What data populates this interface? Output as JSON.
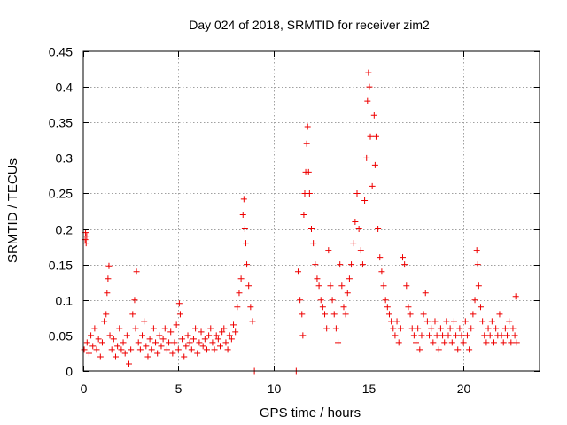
{
  "chart_data": {
    "type": "scatter",
    "title": "Day 024 of 2018, SRMTID for receiver zim2",
    "xlabel": "GPS time / hours",
    "ylabel": "SRMTID / TECUs",
    "xlim": [
      0,
      24
    ],
    "ylim": [
      0,
      0.45
    ],
    "xticks": [
      0,
      5,
      10,
      15,
      20
    ],
    "xtick_labels": [
      "0",
      "5",
      "10",
      "15",
      "20"
    ],
    "yticks": [
      0,
      0.05,
      0.1,
      0.15,
      0.2,
      0.25,
      0.3,
      0.35,
      0.4,
      0.45
    ],
    "ytick_labels": [
      "0",
      "0.05",
      "0.1",
      "0.15",
      "0.2",
      "0.25",
      "0.3",
      "0.35",
      "0.4",
      "0.45"
    ],
    "grid": true,
    "marker": "+",
    "color": "#ee0000",
    "series": [
      {
        "name": "zim2",
        "points": [
          [
            0.05,
            0.03
          ],
          [
            0.1,
            0.185
          ],
          [
            0.12,
            0.195
          ],
          [
            0.15,
            0.18
          ],
          [
            0.18,
            0.19
          ],
          [
            0.2,
            0.04
          ],
          [
            0.3,
            0.025
          ],
          [
            0.4,
            0.05
          ],
          [
            0.5,
            0.035
          ],
          [
            0.6,
            0.06
          ],
          [
            0.7,
            0.03
          ],
          [
            0.8,
            0.045
          ],
          [
            0.9,
            0.02
          ],
          [
            1.0,
            0.04
          ],
          [
            1.1,
            0.07
          ],
          [
            1.2,
            0.08
          ],
          [
            1.25,
            0.11
          ],
          [
            1.3,
            0.13
          ],
          [
            1.35,
            0.148
          ],
          [
            1.4,
            0.05
          ],
          [
            1.5,
            0.03
          ],
          [
            1.6,
            0.045
          ],
          [
            1.7,
            0.02
          ],
          [
            1.8,
            0.035
          ],
          [
            1.9,
            0.06
          ],
          [
            2.0,
            0.03
          ],
          [
            2.1,
            0.04
          ],
          [
            2.2,
            0.025
          ],
          [
            2.3,
            0.05
          ],
          [
            2.4,
            0.01
          ],
          [
            2.5,
            0.03
          ],
          [
            2.6,
            0.08
          ],
          [
            2.7,
            0.1
          ],
          [
            2.75,
            0.06
          ],
          [
            2.8,
            0.14
          ],
          [
            2.9,
            0.04
          ],
          [
            3.0,
            0.03
          ],
          [
            3.1,
            0.05
          ],
          [
            3.2,
            0.07
          ],
          [
            3.3,
            0.035
          ],
          [
            3.4,
            0.02
          ],
          [
            3.5,
            0.045
          ],
          [
            3.6,
            0.03
          ],
          [
            3.7,
            0.06
          ],
          [
            3.8,
            0.04
          ],
          [
            3.9,
            0.025
          ],
          [
            4.0,
            0.05
          ],
          [
            4.1,
            0.035
          ],
          [
            4.2,
            0.045
          ],
          [
            4.3,
            0.06
          ],
          [
            4.4,
            0.03
          ],
          [
            4.5,
            0.04
          ],
          [
            4.6,
            0.055
          ],
          [
            4.7,
            0.025
          ],
          [
            4.8,
            0.04
          ],
          [
            4.9,
            0.065
          ],
          [
            5.0,
            0.03
          ],
          [
            5.05,
            0.095
          ],
          [
            5.1,
            0.08
          ],
          [
            5.2,
            0.045
          ],
          [
            5.3,
            0.02
          ],
          [
            5.4,
            0.035
          ],
          [
            5.5,
            0.05
          ],
          [
            5.6,
            0.04
          ],
          [
            5.7,
            0.03
          ],
          [
            5.8,
            0.045
          ],
          [
            5.9,
            0.06
          ],
          [
            6.0,
            0.025
          ],
          [
            6.1,
            0.04
          ],
          [
            6.2,
            0.055
          ],
          [
            6.3,
            0.035
          ],
          [
            6.4,
            0.045
          ],
          [
            6.5,
            0.03
          ],
          [
            6.6,
            0.05
          ],
          [
            6.7,
            0.06
          ],
          [
            6.8,
            0.04
          ],
          [
            6.9,
            0.03
          ],
          [
            7.0,
            0.05
          ],
          [
            7.1,
            0.045
          ],
          [
            7.2,
            0.035
          ],
          [
            7.3,
            0.055
          ],
          [
            7.4,
            0.06
          ],
          [
            7.5,
            0.04
          ],
          [
            7.6,
            0.03
          ],
          [
            7.7,
            0.05
          ],
          [
            7.8,
            0.045
          ],
          [
            7.9,
            0.065
          ],
          [
            8.0,
            0.055
          ],
          [
            8.1,
            0.09
          ],
          [
            8.2,
            0.11
          ],
          [
            8.3,
            0.13
          ],
          [
            8.4,
            0.22
          ],
          [
            8.45,
            0.242
          ],
          [
            8.5,
            0.2
          ],
          [
            8.55,
            0.18
          ],
          [
            8.6,
            0.15
          ],
          [
            8.7,
            0.12
          ],
          [
            8.8,
            0.09
          ],
          [
            8.9,
            0.07
          ],
          [
            9.0,
            0.0
          ],
          [
            11.2,
            0.0
          ],
          [
            11.3,
            0.14
          ],
          [
            11.4,
            0.1
          ],
          [
            11.5,
            0.08
          ],
          [
            11.55,
            0.05
          ],
          [
            11.6,
            0.22
          ],
          [
            11.65,
            0.25
          ],
          [
            11.7,
            0.28
          ],
          [
            11.75,
            0.32
          ],
          [
            11.8,
            0.344
          ],
          [
            11.85,
            0.28
          ],
          [
            11.9,
            0.25
          ],
          [
            12.0,
            0.2
          ],
          [
            12.1,
            0.18
          ],
          [
            12.2,
            0.15
          ],
          [
            12.3,
            0.13
          ],
          [
            12.4,
            0.12
          ],
          [
            12.5,
            0.1
          ],
          [
            12.6,
            0.09
          ],
          [
            12.7,
            0.08
          ],
          [
            12.8,
            0.06
          ],
          [
            12.9,
            0.17
          ],
          [
            13.0,
            0.12
          ],
          [
            13.1,
            0.1
          ],
          [
            13.2,
            0.08
          ],
          [
            13.3,
            0.06
          ],
          [
            13.4,
            0.04
          ],
          [
            13.5,
            0.15
          ],
          [
            13.6,
            0.12
          ],
          [
            13.7,
            0.09
          ],
          [
            13.8,
            0.08
          ],
          [
            13.9,
            0.11
          ],
          [
            14.0,
            0.13
          ],
          [
            14.1,
            0.15
          ],
          [
            14.2,
            0.18
          ],
          [
            14.3,
            0.21
          ],
          [
            14.4,
            0.25
          ],
          [
            14.5,
            0.2
          ],
          [
            14.6,
            0.17
          ],
          [
            14.7,
            0.15
          ],
          [
            14.8,
            0.24
          ],
          [
            14.9,
            0.3
          ],
          [
            14.95,
            0.38
          ],
          [
            15.0,
            0.42
          ],
          [
            15.05,
            0.4
          ],
          [
            15.1,
            0.33
          ],
          [
            15.2,
            0.26
          ],
          [
            15.3,
            0.36
          ],
          [
            15.35,
            0.29
          ],
          [
            15.4,
            0.33
          ],
          [
            15.5,
            0.2
          ],
          [
            15.6,
            0.16
          ],
          [
            15.7,
            0.14
          ],
          [
            15.8,
            0.12
          ],
          [
            15.9,
            0.1
          ],
          [
            16.0,
            0.09
          ],
          [
            16.1,
            0.08
          ],
          [
            16.2,
            0.07
          ],
          [
            16.3,
            0.06
          ],
          [
            16.4,
            0.05
          ],
          [
            16.5,
            0.07
          ],
          [
            16.6,
            0.04
          ],
          [
            16.7,
            0.06
          ],
          [
            16.8,
            0.16
          ],
          [
            16.9,
            0.15
          ],
          [
            17.0,
            0.12
          ],
          [
            17.1,
            0.09
          ],
          [
            17.2,
            0.08
          ],
          [
            17.3,
            0.06
          ],
          [
            17.4,
            0.05
          ],
          [
            17.5,
            0.04
          ],
          [
            17.6,
            0.06
          ],
          [
            17.7,
            0.03
          ],
          [
            17.8,
            0.05
          ],
          [
            17.9,
            0.08
          ],
          [
            18.0,
            0.11
          ],
          [
            18.1,
            0.07
          ],
          [
            18.2,
            0.05
          ],
          [
            18.3,
            0.06
          ],
          [
            18.4,
            0.04
          ],
          [
            18.5,
            0.07
          ],
          [
            18.6,
            0.05
          ],
          [
            18.7,
            0.03
          ],
          [
            18.8,
            0.06
          ],
          [
            18.9,
            0.05
          ],
          [
            19.0,
            0.04
          ],
          [
            19.1,
            0.07
          ],
          [
            19.2,
            0.05
          ],
          [
            19.3,
            0.06
          ],
          [
            19.4,
            0.04
          ],
          [
            19.5,
            0.07
          ],
          [
            19.6,
            0.05
          ],
          [
            19.7,
            0.03
          ],
          [
            19.8,
            0.06
          ],
          [
            19.9,
            0.05
          ],
          [
            20.0,
            0.04
          ],
          [
            20.1,
            0.07
          ],
          [
            20.2,
            0.05
          ],
          [
            20.3,
            0.03
          ],
          [
            20.4,
            0.06
          ],
          [
            20.5,
            0.08
          ],
          [
            20.6,
            0.1
          ],
          [
            20.7,
            0.17
          ],
          [
            20.75,
            0.15
          ],
          [
            20.8,
            0.12
          ],
          [
            20.9,
            0.09
          ],
          [
            21.0,
            0.07
          ],
          [
            21.1,
            0.05
          ],
          [
            21.2,
            0.04
          ],
          [
            21.3,
            0.06
          ],
          [
            21.4,
            0.05
          ],
          [
            21.5,
            0.07
          ],
          [
            21.6,
            0.04
          ],
          [
            21.7,
            0.06
          ],
          [
            21.8,
            0.05
          ],
          [
            21.9,
            0.08
          ],
          [
            22.0,
            0.05
          ],
          [
            22.1,
            0.04
          ],
          [
            22.2,
            0.06
          ],
          [
            22.3,
            0.05
          ],
          [
            22.4,
            0.07
          ],
          [
            22.5,
            0.04
          ],
          [
            22.6,
            0.06
          ],
          [
            22.7,
            0.05
          ],
          [
            22.75,
            0.105
          ],
          [
            22.8,
            0.04
          ]
        ]
      }
    ]
  }
}
